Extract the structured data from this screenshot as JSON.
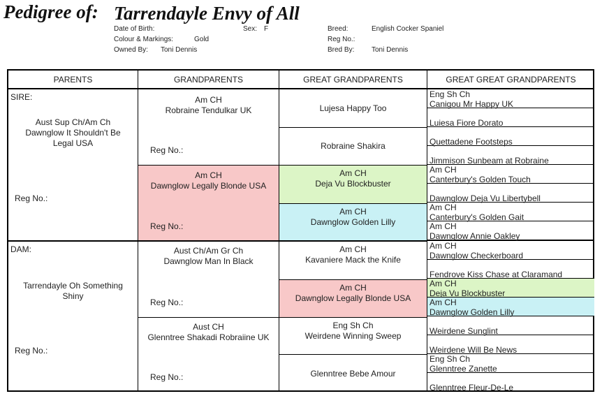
{
  "header": {
    "label": "Pedigree of:",
    "dog_name": "Tarrendayle Envy of All",
    "dob_label": "Date of Birth:",
    "dob_value": "",
    "sex_label": "Sex:",
    "sex_value": "F",
    "breed_label": "Breed:",
    "breed_value": "English Cocker Spaniel",
    "colour_label": "Colour & Markings:",
    "colour_value": "Gold",
    "regno_label": "Reg No.:",
    "regno_value": "",
    "owned_label": "Owned By:",
    "owned_value": "Toni Dennis",
    "bred_label": "Bred By:",
    "bred_value": "Toni Dennis"
  },
  "columns": [
    "PARENTS",
    "GRANDPARENTS",
    "GREAT GRANDPARENTS",
    "GREAT GREAT GRANDPARENTS"
  ],
  "reg_label": "Reg No.:",
  "parents": {
    "sire_label": "SIRE:",
    "sire_name": "Aust Sup Ch/Am Ch\nDawnglow It Shouldn't Be\nLegal USA",
    "dam_label": "DAM:",
    "dam_name": "Tarrendayle Oh Something\nShiny"
  },
  "grandparents": [
    {
      "name": "Am CH\nRobraine Tendulkar UK"
    },
    {
      "name": "Am CH\nDawnglow Legally Blonde USA"
    },
    {
      "name": "Aust Ch/Am Gr Ch\nDawnglow Man In Black"
    },
    {
      "name": "Aust CH\nGlenntree Shakadi Robraiine UK"
    }
  ],
  "great_grandparents": [
    {
      "name": "Lujesa Happy Too"
    },
    {
      "name": "Robraine Shakira"
    },
    {
      "name": "Am CH\nDeja Vu Blockbuster"
    },
    {
      "name": "Am CH\nDawnglow Golden Lilly"
    },
    {
      "name": "Am CH\nKavaniere Mack the Knife"
    },
    {
      "name": "Am CH\nDawnglow Legally Blonde USA"
    },
    {
      "name": "Eng Sh Ch\nWeirdene Winning Sweep"
    },
    {
      "name": "Glenntree Bebe Amour"
    }
  ],
  "great_great_grandparents": [
    {
      "title": "Eng Sh Ch",
      "name": "Canigou Mr Happy UK"
    },
    {
      "title": "",
      "name": "Luiesa Fiore Dorato"
    },
    {
      "title": "",
      "name": "Quettadene Footsteps"
    },
    {
      "title": "",
      "name": "Jimmison Sunbeam at Robraine"
    },
    {
      "title": "Am CH",
      "name": "Canterbury's Golden Touch"
    },
    {
      "title": "",
      "name": "Dawnglow Deja Vu Libertybell"
    },
    {
      "title": "Am CH",
      "name": "Canterbury's Golden Gait"
    },
    {
      "title": "Am CH",
      "name": "Dawnglow Annie Oakley"
    },
    {
      "title": "Am CH",
      "name": "Dawnglow Checkerboard"
    },
    {
      "title": "",
      "name": "Fendrove Kiss Chase at Claramand"
    },
    {
      "title": "Am CH",
      "name": "Deja Vu Blockbuster"
    },
    {
      "title": "Am CH",
      "name": "Dawnglow Golden Lilly"
    },
    {
      "title": "",
      "name": "Weirdene Sunglint"
    },
    {
      "title": "",
      "name": "Weirdene Will Be News"
    },
    {
      "title": "Eng Sh Ch",
      "name": "Glenntree Zanette"
    },
    {
      "title": "",
      "name": "Glenntree Fleur-De-Le"
    }
  ],
  "colors": {
    "pink": "#f8c8c8",
    "green": "#dcf5c6",
    "blue": "#c9f1f5"
  }
}
